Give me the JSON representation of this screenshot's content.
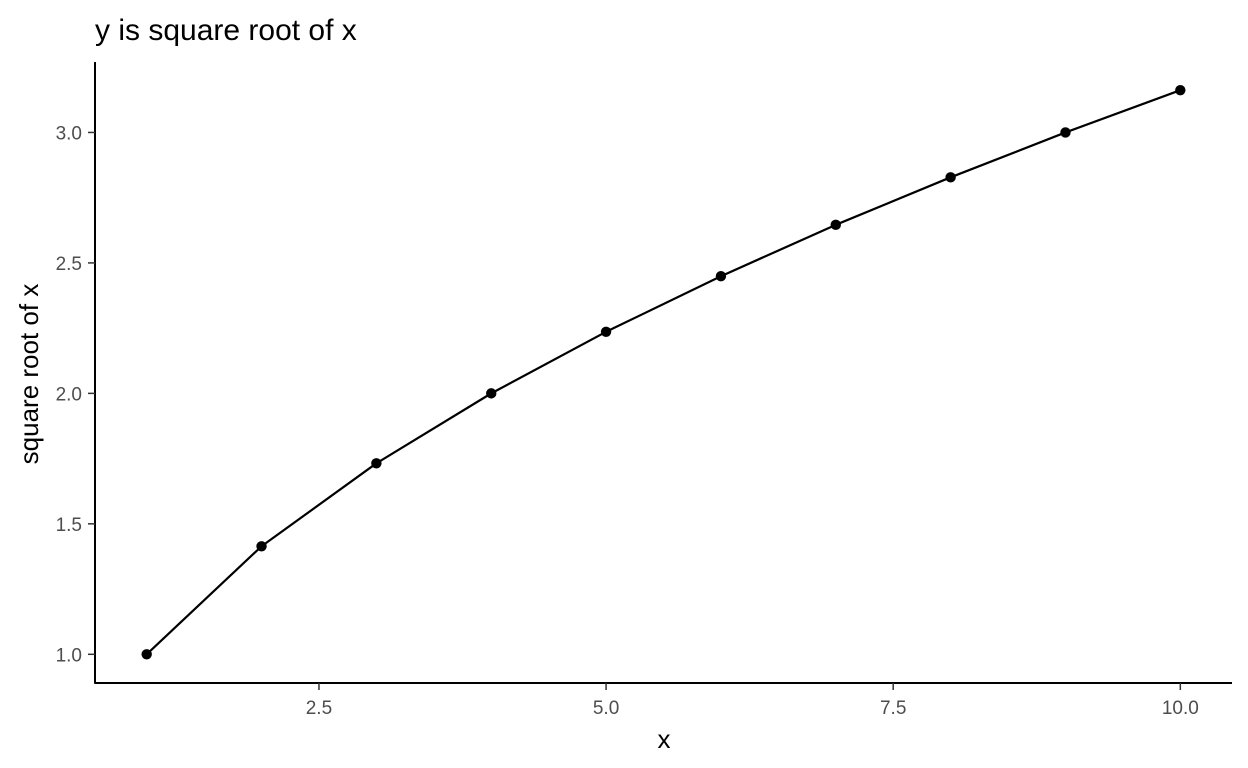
{
  "chart_data": {
    "type": "line",
    "title": "y is square root of x",
    "xlabel": "x",
    "ylabel": "square root of x",
    "x": [
      1,
      2,
      3,
      4,
      5,
      6,
      7,
      8,
      9,
      10
    ],
    "series": [
      {
        "values": [
          1.0,
          1.414,
          1.732,
          2.0,
          2.236,
          2.449,
          2.646,
          2.828,
          3.0,
          3.162
        ]
      }
    ],
    "xlim": [
      0.55,
      10.45
    ],
    "ylim": [
      0.89,
      3.27
    ],
    "x_ticks": [
      2.5,
      5.0,
      7.5,
      10.0
    ],
    "x_tick_labels": [
      "2.5",
      "5.0",
      "7.5",
      "10.0"
    ],
    "y_ticks": [
      1.0,
      1.5,
      2.0,
      2.5,
      3.0
    ],
    "y_tick_labels": [
      "1.0",
      "1.5",
      "2.0",
      "2.5",
      "3.0"
    ],
    "grid": false,
    "legend": "none",
    "colors": {
      "line": "#000000",
      "points": "#000000",
      "axis": "#000000",
      "tick_text": "#4d4d4d"
    }
  }
}
